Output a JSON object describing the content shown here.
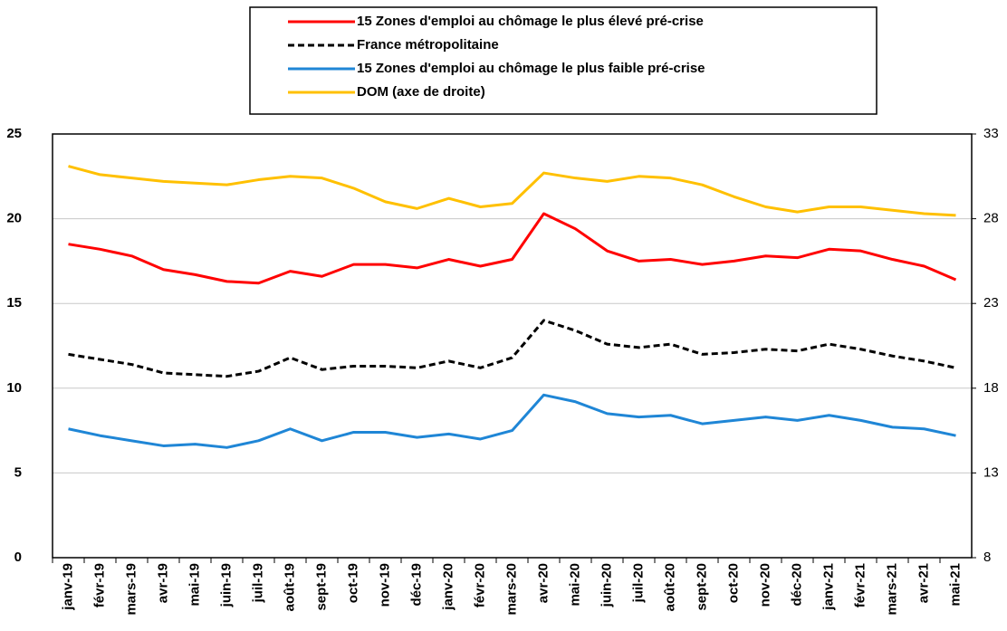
{
  "chart_data": {
    "type": "line",
    "categories": [
      "janv-19",
      "févr-19",
      "mars-19",
      "avr-19",
      "mai-19",
      "juin-19",
      "juil-19",
      "août-19",
      "sept-19",
      "oct-19",
      "nov-19",
      "déc-19",
      "janv-20",
      "févr-20",
      "mars-20",
      "avr-20",
      "mai-20",
      "juin-20",
      "juil-20",
      "août-20",
      "sept-20",
      "oct-20",
      "nov-20",
      "déc-20",
      "janv-21",
      "févr-21",
      "mars-21",
      "avr-21",
      "mai-21"
    ],
    "series": [
      {
        "name": "15 Zones d'emploi au chômage le plus élevé pré-crise",
        "color": "#ff0000",
        "line_style": "solid",
        "values": [
          18.5,
          18.2,
          17.8,
          17.0,
          16.7,
          16.3,
          16.2,
          16.9,
          16.6,
          17.3,
          17.3,
          17.1,
          17.6,
          17.2,
          17.6,
          20.3,
          19.4,
          18.1,
          17.5,
          17.6,
          17.3,
          17.5,
          17.8,
          17.7,
          18.2,
          18.1,
          17.6,
          17.2,
          16.4
        ]
      },
      {
        "name": "France métropolitaine",
        "color": "#000000",
        "line_style": "dashed",
        "values": [
          12.0,
          11.7,
          11.4,
          10.9,
          10.8,
          10.7,
          11.0,
          11.8,
          11.1,
          11.3,
          11.3,
          11.2,
          11.6,
          11.2,
          11.8,
          14.0,
          13.4,
          12.6,
          12.4,
          12.6,
          12.0,
          12.1,
          12.3,
          12.2,
          12.6,
          12.3,
          11.9,
          11.6,
          11.2
        ]
      },
      {
        "name": "15 Zones d'emploi au chômage le plus faible pré-crise",
        "color": "#1f86d6",
        "line_style": "solid",
        "values": [
          7.6,
          7.2,
          6.9,
          6.6,
          6.7,
          6.5,
          6.9,
          7.6,
          6.9,
          7.4,
          7.4,
          7.1,
          7.3,
          7.0,
          7.5,
          9.6,
          9.2,
          8.5,
          8.3,
          8.4,
          7.9,
          8.1,
          8.3,
          8.1,
          8.4,
          8.1,
          7.7,
          7.6,
          7.2
        ]
      },
      {
        "name": "DOM (axe de droite)",
        "color": "#ffc000",
        "line_style": "solid",
        "axis": "y2",
        "values": [
          31.1,
          30.6,
          30.4,
          30.2,
          30.1,
          30.0,
          30.3,
          30.5,
          30.4,
          29.8,
          29.0,
          28.6,
          29.2,
          28.7,
          28.9,
          30.7,
          30.4,
          30.2,
          30.5,
          30.4,
          30.0,
          29.3,
          28.7,
          28.4,
          28.7,
          28.7,
          28.5,
          28.3,
          28.2
        ]
      }
    ],
    "ylim": [
      0,
      25
    ],
    "yticks": [
      0,
      5,
      10,
      15,
      20,
      25
    ],
    "y2lim": [
      8,
      33
    ],
    "y2ticks": [
      8,
      13,
      18,
      23,
      28,
      33
    ],
    "grid": true
  }
}
